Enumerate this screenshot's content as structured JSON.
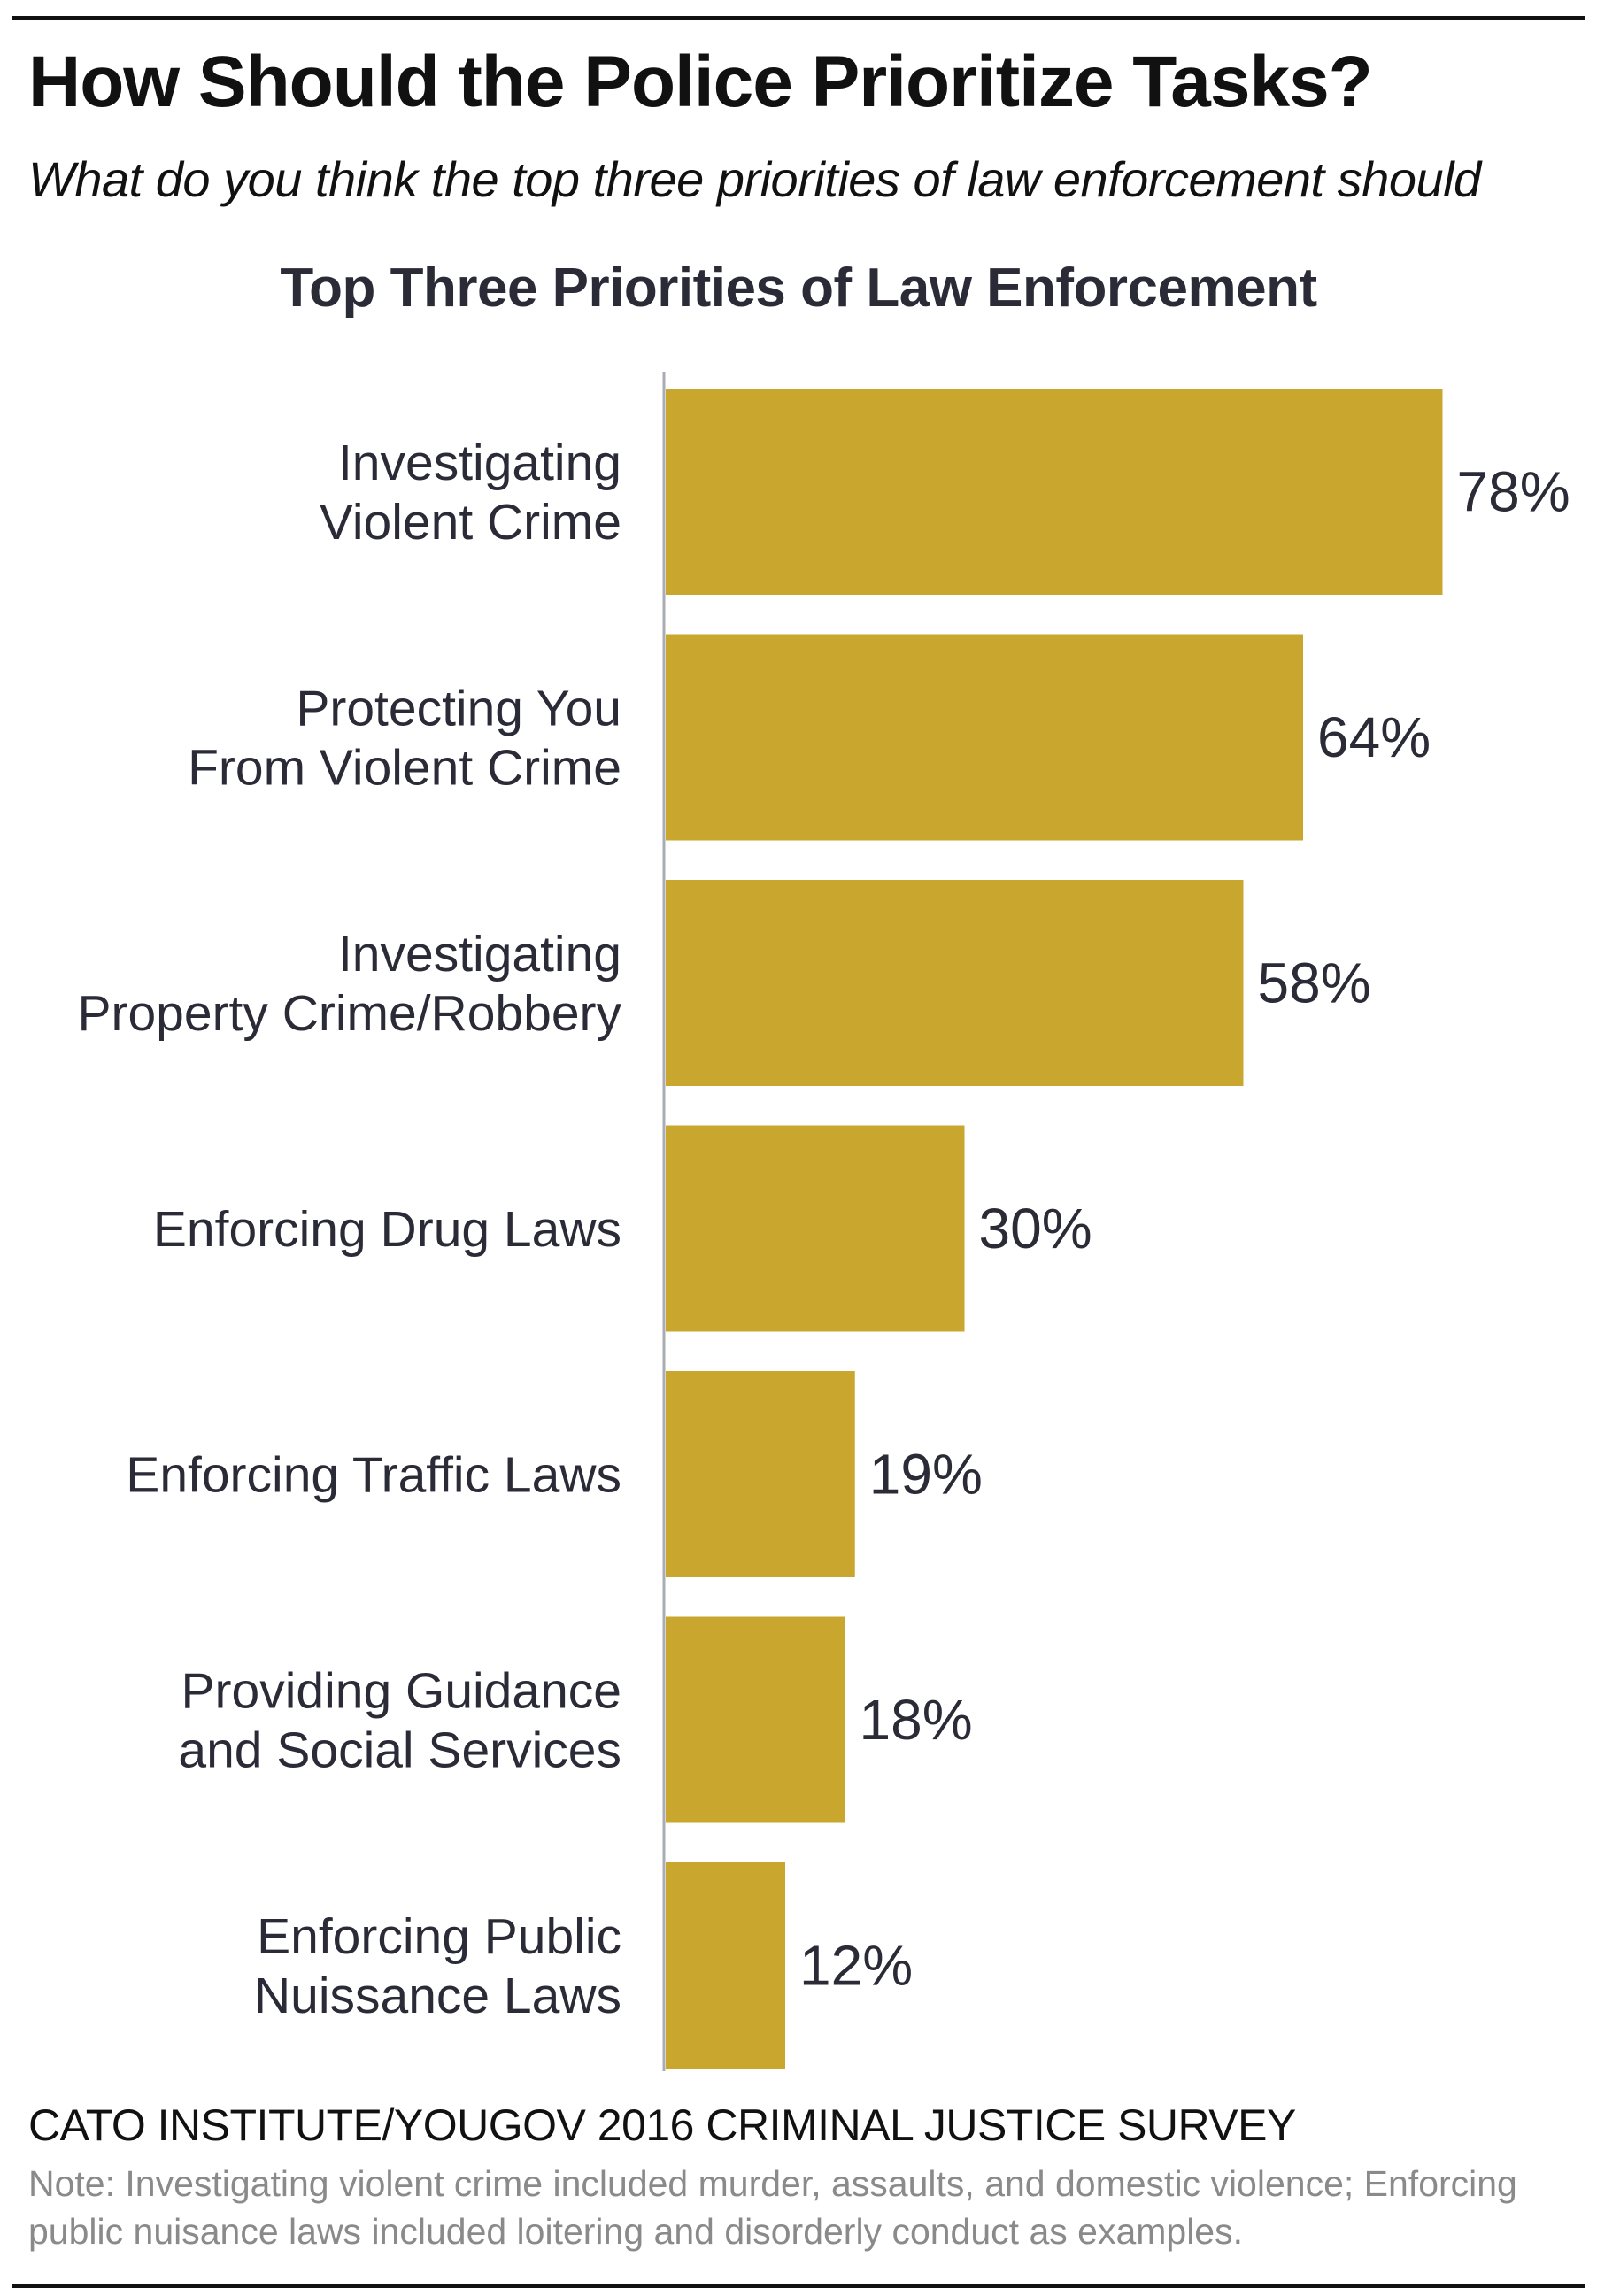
{
  "title": "How Should the Police Prioritize Tasks?",
  "subtitle": "What do you think the top three priorities of law enforcement should",
  "source": "CATO INSTITUTE/YOUGOV 2016 CRIMINAL JUSTICE SURVEY",
  "note": "Note: Investigating violent crime included murder, assaults, and domestic violence; Enforcing public nuisance laws included loitering and disorderly conduct as examples.",
  "colors": {
    "bar": "#C9A72F",
    "text": "#2a2b36",
    "axis": "#a9acb2"
  },
  "chart_data": {
    "type": "bar",
    "orientation": "horizontal",
    "title": "Top Three Priorities of Law Enforcement",
    "xlabel": "",
    "ylabel": "",
    "xlim": [
      0,
      78
    ],
    "grid": false,
    "categories": [
      [
        "Investigating",
        "Violent Crime"
      ],
      [
        "Protecting You",
        "From Violent Crime"
      ],
      [
        "Investigating",
        "Property Crime/Robbery"
      ],
      [
        "Enforcing Drug Laws"
      ],
      [
        "Enforcing Traffic Laws"
      ],
      [
        "Providing Guidance",
        "and Social Services"
      ],
      [
        "Enforcing Public",
        "Nuissance Laws"
      ]
    ],
    "values": [
      78,
      64,
      58,
      30,
      19,
      18,
      12
    ],
    "data_labels": [
      "78%",
      "64%",
      "58%",
      "30%",
      "19%",
      "18%",
      "12%"
    ]
  }
}
